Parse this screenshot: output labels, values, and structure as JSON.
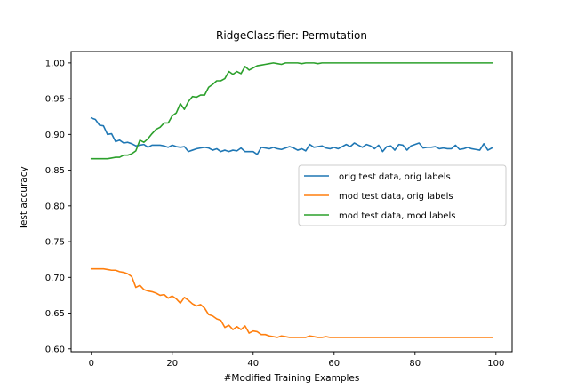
{
  "chart_data": {
    "type": "line",
    "title": "RidgeClassifier: Permutation",
    "xlabel": "#Modified Training Examples",
    "ylabel": "Test accuracy",
    "xlim": [
      -5,
      104
    ],
    "ylim": [
      0.596,
      1.016
    ],
    "xticks": [
      0,
      20,
      40,
      60,
      80,
      100
    ],
    "yticks": [
      0.6,
      0.65,
      0.7,
      0.75,
      0.8,
      0.85,
      0.9,
      0.95,
      1.0
    ],
    "xtick_labels": [
      "0",
      "20",
      "40",
      "60",
      "80",
      "100"
    ],
    "ytick_labels": [
      "0.60",
      "0.65",
      "0.70",
      "0.75",
      "0.80",
      "0.85",
      "0.90",
      "0.95",
      "1.00"
    ],
    "grid": false,
    "legend_position": "center-right",
    "x": [
      0,
      1,
      2,
      3,
      4,
      5,
      6,
      7,
      8,
      9,
      10,
      11,
      12,
      13,
      14,
      15,
      16,
      17,
      18,
      19,
      20,
      21,
      22,
      23,
      24,
      25,
      26,
      27,
      28,
      29,
      30,
      31,
      32,
      33,
      34,
      35,
      36,
      37,
      38,
      39,
      40,
      41,
      42,
      43,
      44,
      45,
      46,
      47,
      48,
      49,
      50,
      51,
      52,
      53,
      54,
      55,
      56,
      57,
      58,
      59,
      60,
      61,
      62,
      63,
      64,
      65,
      66,
      67,
      68,
      69,
      70,
      71,
      72,
      73,
      74,
      75,
      76,
      77,
      78,
      79,
      80,
      81,
      82,
      83,
      84,
      85,
      86,
      87,
      88,
      89,
      90,
      91,
      92,
      93,
      94,
      95,
      96,
      97,
      98,
      99
    ],
    "series": [
      {
        "name": "orig test data, orig labels",
        "color": "#1f77b4",
        "values": [
          0.923,
          0.921,
          0.913,
          0.912,
          0.9,
          0.901,
          0.89,
          0.892,
          0.888,
          0.889,
          0.887,
          0.884,
          0.885,
          0.886,
          0.882,
          0.885,
          0.885,
          0.885,
          0.884,
          0.882,
          0.885,
          0.883,
          0.882,
          0.883,
          0.876,
          0.878,
          0.88,
          0.881,
          0.882,
          0.881,
          0.878,
          0.88,
          0.876,
          0.878,
          0.876,
          0.878,
          0.877,
          0.881,
          0.876,
          0.876,
          0.876,
          0.872,
          0.882,
          0.881,
          0.88,
          0.882,
          0.88,
          0.879,
          0.881,
          0.883,
          0.881,
          0.878,
          0.88,
          0.877,
          0.886,
          0.882,
          0.883,
          0.884,
          0.881,
          0.88,
          0.882,
          0.88,
          0.883,
          0.886,
          0.883,
          0.888,
          0.885,
          0.882,
          0.886,
          0.884,
          0.88,
          0.885,
          0.876,
          0.883,
          0.884,
          0.878,
          0.886,
          0.885,
          0.878,
          0.884,
          0.886,
          0.888,
          0.881,
          0.882,
          0.882,
          0.883,
          0.88,
          0.881,
          0.88,
          0.88,
          0.885,
          0.879,
          0.88,
          0.882,
          0.88,
          0.879,
          0.878,
          0.887,
          0.878,
          0.881
        ]
      },
      {
        "name": "mod test data, orig labels",
        "color": "#ff7f0e",
        "values": [
          0.712,
          0.712,
          0.712,
          0.712,
          0.711,
          0.71,
          0.71,
          0.708,
          0.707,
          0.705,
          0.701,
          0.686,
          0.689,
          0.683,
          0.681,
          0.68,
          0.678,
          0.675,
          0.676,
          0.671,
          0.674,
          0.67,
          0.664,
          0.672,
          0.668,
          0.663,
          0.66,
          0.662,
          0.657,
          0.648,
          0.646,
          0.642,
          0.64,
          0.63,
          0.633,
          0.627,
          0.631,
          0.627,
          0.632,
          0.622,
          0.625,
          0.624,
          0.62,
          0.62,
          0.618,
          0.617,
          0.616,
          0.618,
          0.617,
          0.616,
          0.616,
          0.616,
          0.616,
          0.616,
          0.618,
          0.617,
          0.616,
          0.616,
          0.617,
          0.616,
          0.616,
          0.616,
          0.616,
          0.616,
          0.616,
          0.616,
          0.616,
          0.616,
          0.616,
          0.616,
          0.616,
          0.616,
          0.616,
          0.616,
          0.616,
          0.616,
          0.616,
          0.616,
          0.616,
          0.616,
          0.616,
          0.616,
          0.616,
          0.616,
          0.616,
          0.616,
          0.616,
          0.616,
          0.616,
          0.616,
          0.616,
          0.616,
          0.616,
          0.616,
          0.616,
          0.616,
          0.616,
          0.616,
          0.616,
          0.616
        ]
      },
      {
        "name": "mod test data, mod labels",
        "color": "#2ca02c",
        "values": [
          0.866,
          0.866,
          0.866,
          0.866,
          0.866,
          0.867,
          0.868,
          0.868,
          0.871,
          0.871,
          0.873,
          0.877,
          0.892,
          0.889,
          0.894,
          0.901,
          0.907,
          0.91,
          0.916,
          0.916,
          0.926,
          0.93,
          0.943,
          0.935,
          0.946,
          0.953,
          0.952,
          0.955,
          0.955,
          0.966,
          0.97,
          0.975,
          0.975,
          0.978,
          0.988,
          0.984,
          0.988,
          0.985,
          0.995,
          0.99,
          0.993,
          0.996,
          0.997,
          0.998,
          0.999,
          1.0,
          0.999,
          0.998,
          1.0,
          1.0,
          1.0,
          1.0,
          0.999,
          1.0,
          1.0,
          1.0,
          0.999,
          1.0,
          1.0,
          1.0,
          1.0,
          1.0,
          1.0,
          1.0,
          1.0,
          1.0,
          1.0,
          1.0,
          1.0,
          1.0,
          1.0,
          1.0,
          1.0,
          1.0,
          1.0,
          1.0,
          1.0,
          1.0,
          1.0,
          1.0,
          1.0,
          1.0,
          1.0,
          1.0,
          1.0,
          1.0,
          1.0,
          1.0,
          1.0,
          1.0,
          1.0,
          1.0,
          1.0,
          1.0,
          1.0,
          1.0,
          1.0,
          1.0,
          1.0,
          1.0
        ]
      }
    ]
  }
}
